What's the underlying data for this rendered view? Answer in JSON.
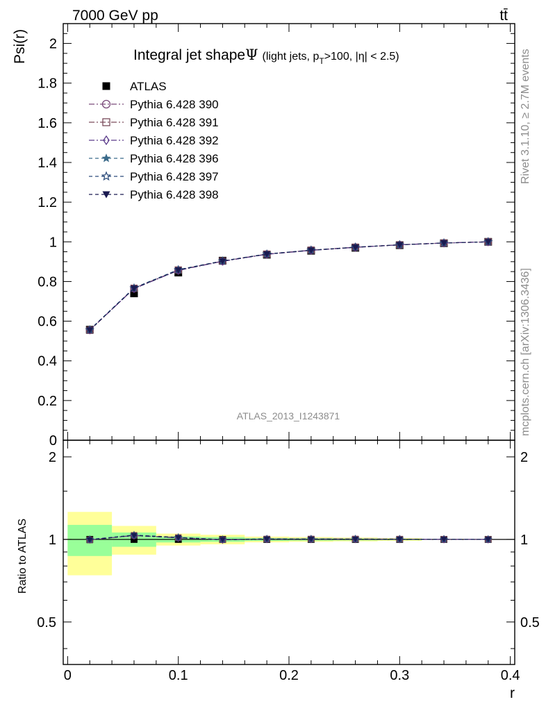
{
  "header": {
    "energy_label": "7000 GeV pp",
    "process_label": "tt̄"
  },
  "side_labels": {
    "rivet_version": "Rivet 3.1.10, ≥ 2.7M events",
    "source": "mcplots.cern.ch [arXiv:1306.3436]"
  },
  "analysis_id": "ATLAS_2013_I1243871",
  "chart_data": {
    "type": "line",
    "title_main": "Integral jet shape",
    "title_symbol": "Ψ",
    "title_detail": "(light jets, p",
    "title_detail_sub": "T",
    "title_detail_end": ">100, |η| < 2.5)",
    "ylabel": "Psi(r)",
    "xlabel": "r",
    "ratio_ylabel": "Ratio to ATLAS",
    "xlim": [
      -0.004,
      0.404
    ],
    "ylim": [
      0,
      2.1
    ],
    "ratio_ylim": [
      0.35,
      2.3
    ],
    "x_ticks": [
      {
        "v": 0,
        "label": "0"
      },
      {
        "v": 0.1,
        "label": "0.1"
      },
      {
        "v": 0.2,
        "label": "0.2"
      },
      {
        "v": 0.3,
        "label": "0.3"
      },
      {
        "v": 0.4,
        "label": "0.4"
      }
    ],
    "y_ticks": [
      {
        "v": 0,
        "label": "0"
      },
      {
        "v": 0.2,
        "label": "0.2"
      },
      {
        "v": 0.4,
        "label": "0.4"
      },
      {
        "v": 0.6,
        "label": "0.6"
      },
      {
        "v": 0.8,
        "label": "0.8"
      },
      {
        "v": 1,
        "label": "1"
      },
      {
        "v": 1.2,
        "label": "1.2"
      },
      {
        "v": 1.4,
        "label": "1.4"
      },
      {
        "v": 1.6,
        "label": "1.6"
      },
      {
        "v": 1.8,
        "label": "1.8"
      },
      {
        "v": 2,
        "label": "2"
      }
    ],
    "ratio_ticks": [
      {
        "v": 0.5,
        "label": "0.5"
      },
      {
        "v": 1,
        "label": "1"
      },
      {
        "v": 2,
        "label": "2"
      }
    ],
    "x": [
      0.02,
      0.06,
      0.1,
      0.14,
      0.18,
      0.22,
      0.26,
      0.3,
      0.34,
      0.38
    ],
    "x_bin_edges": [
      0,
      0.04,
      0.08,
      0.12,
      0.16,
      0.2,
      0.24,
      0.28,
      0.32,
      0.36,
      0.4
    ],
    "data": {
      "name": "ATLAS",
      "values": [
        0.557,
        0.74,
        0.845,
        0.905,
        0.935,
        0.955,
        0.97,
        0.983,
        0.993,
        1.0
      ]
    },
    "band_inner_half": [
      0.13,
      0.06,
      0.025,
      0.02,
      0.012,
      0.01,
      0.008,
      0.006,
      0,
      0
    ],
    "band_outer_half": [
      0.26,
      0.12,
      0.05,
      0.04,
      0.024,
      0.02,
      0.016,
      0.012,
      0,
      0
    ],
    "series": [
      {
        "name": "Pythia 6.428 390",
        "color": "#7b4a7b",
        "marker": "circle-open",
        "dash": "8,3,2,3",
        "values": [
          0.555,
          0.765,
          0.857,
          0.902,
          0.938,
          0.958,
          0.973,
          0.985,
          0.994,
          1.0
        ]
      },
      {
        "name": "Pythia 6.428 391",
        "color": "#7a4a5a",
        "marker": "square-open",
        "dash": "8,3,2,3",
        "values": [
          0.554,
          0.766,
          0.858,
          0.903,
          0.938,
          0.958,
          0.973,
          0.985,
          0.994,
          1.0
        ]
      },
      {
        "name": "Pythia 6.428 392",
        "color": "#5a3a8a",
        "marker": "diamond-open",
        "dash": "8,3,2,3",
        "values": [
          0.556,
          0.764,
          0.856,
          0.902,
          0.937,
          0.957,
          0.972,
          0.985,
          0.994,
          1.0
        ]
      },
      {
        "name": "Pythia 6.428 396",
        "color": "#3a6a8a",
        "marker": "star-filled",
        "dash": "5,4",
        "values": [
          0.557,
          0.768,
          0.86,
          0.904,
          0.939,
          0.958,
          0.973,
          0.985,
          0.994,
          1.0
        ]
      },
      {
        "name": "Pythia 6.428 397",
        "color": "#2a4a7a",
        "marker": "star-open",
        "dash": "5,4",
        "values": [
          0.556,
          0.767,
          0.859,
          0.903,
          0.938,
          0.958,
          0.973,
          0.985,
          0.994,
          1.0
        ]
      },
      {
        "name": "Pythia 6.428 398",
        "color": "#1a1a50",
        "marker": "triangle-down-filled",
        "dash": "5,4",
        "values": [
          0.555,
          0.765,
          0.857,
          0.903,
          0.938,
          0.957,
          0.972,
          0.985,
          0.994,
          1.0
        ]
      }
    ],
    "legend_position": "top-left",
    "grid": false
  }
}
